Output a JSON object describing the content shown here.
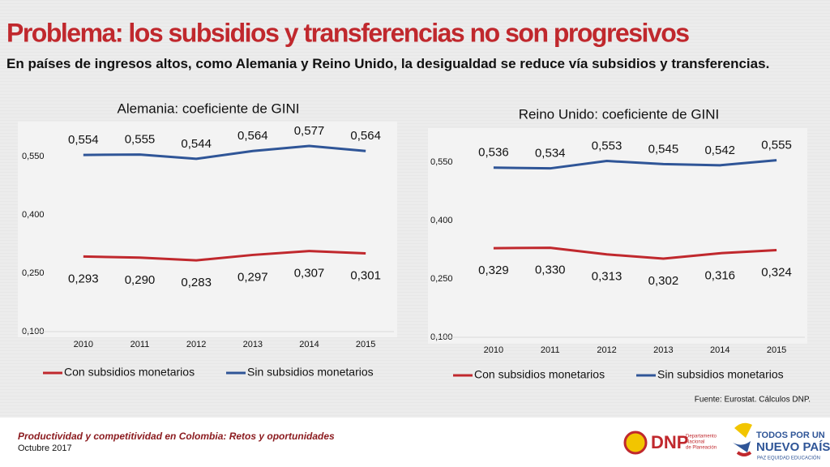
{
  "title": "Problema: los subsidios y transferencias no son progresivos",
  "subtitle": "En países de ingresos altos, como Alemania y Reino Unido, la desigualdad se reduce vía subsidios y transferencias.",
  "source": "Fuente: Eurostat. Cálculos DNP.",
  "footer": {
    "title": "Productividad y competitividad en Colombia: Retos y oportunidades",
    "date": "Octubre 2017"
  },
  "logos": {
    "dnp": "DNP",
    "dnp_name": [
      "Departamento",
      "Nacional",
      "de Planeación"
    ],
    "gov": [
      "TODOS POR UN",
      "NUEVO PAÍS"
    ],
    "gov_motto": "PAZ  EQUIDAD  EDUCACIÓN"
  },
  "chart_data": [
    {
      "type": "line",
      "title": "Alemania: coeficiente de GINI",
      "categories": [
        "2010",
        "2011",
        "2012",
        "2013",
        "2014",
        "2015"
      ],
      "series": [
        {
          "name": "Con subsidios monetarios",
          "color": "#c0282d",
          "values": [
            0.293,
            0.29,
            0.283,
            0.297,
            0.307,
            0.301
          ],
          "value_labels": [
            "0,293",
            "0,290",
            "0,283",
            "0,297",
            "0,307",
            "0,301"
          ]
        },
        {
          "name": "Sin subsidios monetarios",
          "color": "#2f5597",
          "values": [
            0.554,
            0.555,
            0.544,
            0.564,
            0.577,
            0.564
          ],
          "value_labels": [
            "0,554",
            "0,555",
            "0,544",
            "0,564",
            "0,577",
            "0,564"
          ]
        }
      ],
      "ylim": [
        0.1,
        0.6
      ],
      "yticks": [
        {
          "value": 0.1,
          "label": "0,100"
        },
        {
          "value": 0.25,
          "label": "0,250"
        },
        {
          "value": 0.4,
          "label": "0,400"
        },
        {
          "value": 0.55,
          "label": "0,550"
        }
      ]
    },
    {
      "type": "line",
      "title": "Reino Unido: coeficiente de GINI",
      "categories": [
        "2010",
        "2011",
        "2012",
        "2013",
        "2014",
        "2015"
      ],
      "series": [
        {
          "name": "Con subsidios monetarios",
          "color": "#c0282d",
          "values": [
            0.329,
            0.33,
            0.313,
            0.302,
            0.316,
            0.324
          ],
          "value_labels": [
            "0,329",
            "0,330",
            "0,313",
            "0,302",
            "0,316",
            "0,324"
          ]
        },
        {
          "name": "Sin subsidios monetarios",
          "color": "#2f5597",
          "values": [
            0.536,
            0.534,
            0.553,
            0.545,
            0.542,
            0.555
          ],
          "value_labels": [
            "0,536",
            "0,534",
            "0,553",
            "0,545",
            "0,542",
            "0,555"
          ]
        }
      ],
      "ylim": [
        0.1,
        0.6
      ],
      "yticks": [
        {
          "value": 0.1,
          "label": "0,100"
        },
        {
          "value": 0.25,
          "label": "0,250"
        },
        {
          "value": 0.4,
          "label": "0,400"
        },
        {
          "value": 0.55,
          "label": "0,550"
        }
      ]
    }
  ]
}
